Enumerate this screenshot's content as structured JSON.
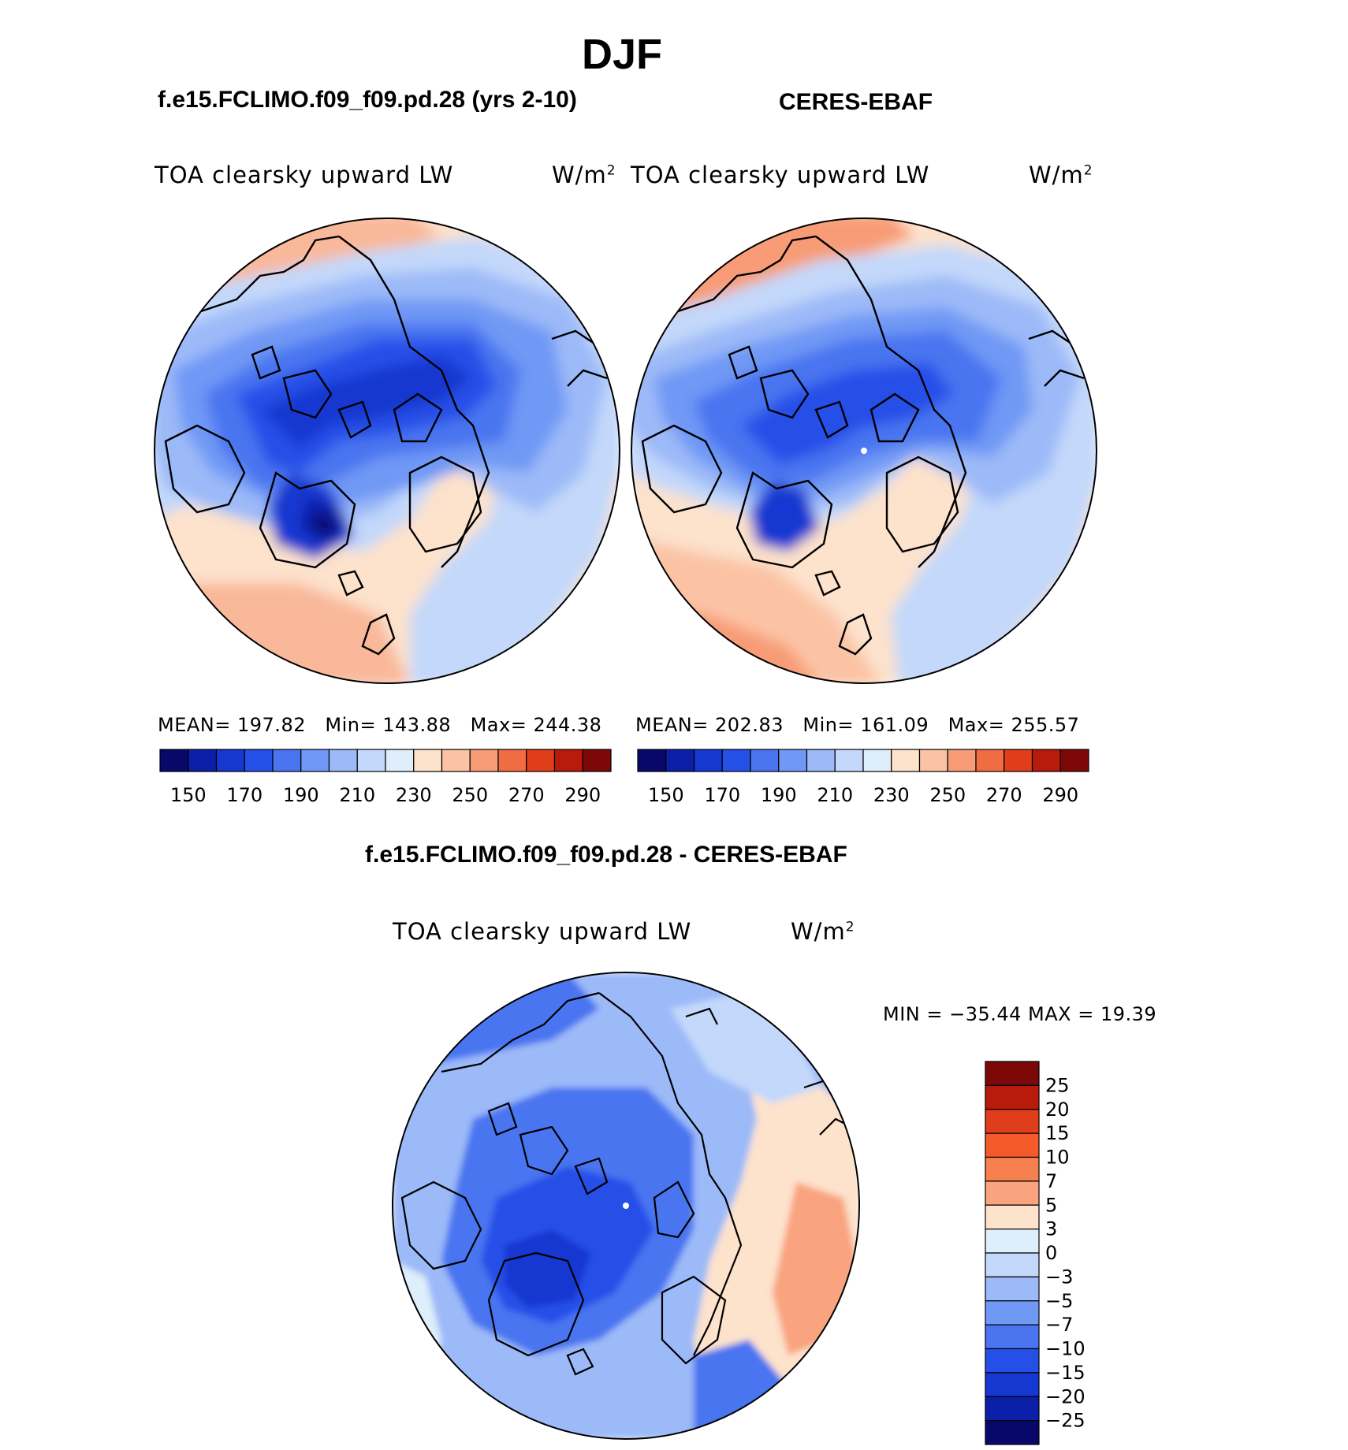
{
  "main_title": "DJF",
  "panels": {
    "model": {
      "title": "f.e15.FCLIMO.f09_f09.pd.28 (yrs 2-10)",
      "variable": "TOA clearsky upward LW",
      "units_base": "W/m",
      "units_exp": "2",
      "mean_label": "MEAN=",
      "mean": "197.82",
      "min_label": "Min=",
      "min": "143.88",
      "max_label": "Max=",
      "max": "244.38"
    },
    "obs": {
      "title": "CERES-EBAF",
      "variable": "TOA clearsky upward LW",
      "units_base": "W/m",
      "units_exp": "2",
      "mean_label": "MEAN=",
      "mean": "202.83",
      "min_label": "Min=",
      "min": "161.09",
      "max_label": "Max=",
      "max": "255.57"
    },
    "diff": {
      "title": "f.e15.FCLIMO.f09_f09.pd.28 - CERES-EBAF",
      "variable": "TOA clearsky upward LW",
      "units_base": "W/m",
      "units_exp": "2",
      "minmax_text": "MIN = −35.44 MAX =   19.39"
    }
  },
  "chart_data": [
    {
      "type": "heatmap",
      "projection": "north-polar-stereographic",
      "title": "f.e15.FCLIMO.f09_f09.pd.28 (yrs 2-10)",
      "variable": "TOA clearsky upward LW",
      "units": "W/m2",
      "mean": 197.82,
      "min": 143.88,
      "max": 244.38,
      "colorbar": {
        "orientation": "horizontal",
        "levels": [
          150,
          160,
          170,
          180,
          190,
          200,
          210,
          220,
          230,
          240,
          250,
          260,
          270,
          280,
          290
        ],
        "tick_labels": [
          "150",
          "170",
          "190",
          "210",
          "230",
          "250",
          "270",
          "290"
        ],
        "colors": [
          "#08086b",
          "#0b1fa8",
          "#1538d0",
          "#2550e8",
          "#4a74f0",
          "#7098f5",
          "#9cbaf8",
          "#c3d8fa",
          "#dfeefb",
          "#fde2cc",
          "#fbc3a4",
          "#f79c76",
          "#f06c42",
          "#e03d1a",
          "#b81a0c",
          "#7c0808"
        ]
      }
    },
    {
      "type": "heatmap",
      "projection": "north-polar-stereographic",
      "title": "CERES-EBAF",
      "variable": "TOA clearsky upward LW",
      "units": "W/m2",
      "mean": 202.83,
      "min": 161.09,
      "max": 255.57,
      "colorbar": {
        "orientation": "horizontal",
        "levels": [
          150,
          160,
          170,
          180,
          190,
          200,
          210,
          220,
          230,
          240,
          250,
          260,
          270,
          280,
          290
        ],
        "tick_labels": [
          "150",
          "170",
          "190",
          "210",
          "230",
          "250",
          "270",
          "290"
        ],
        "colors": [
          "#08086b",
          "#0b1fa8",
          "#1538d0",
          "#2550e8",
          "#4a74f0",
          "#7098f5",
          "#9cbaf8",
          "#c3d8fa",
          "#dfeefb",
          "#fde2cc",
          "#fbc3a4",
          "#f79c76",
          "#f06c42",
          "#e03d1a",
          "#b81a0c",
          "#7c0808"
        ]
      }
    },
    {
      "type": "heatmap",
      "projection": "north-polar-stereographic",
      "title": "f.e15.FCLIMO.f09_f09.pd.28 - CERES-EBAF",
      "variable": "TOA clearsky upward LW",
      "units": "W/m2",
      "min": -35.44,
      "max": 19.39,
      "colorbar": {
        "orientation": "vertical",
        "tick_labels": [
          "25",
          "20",
          "15",
          "10",
          "7",
          "5",
          "3",
          "0",
          "−3",
          "−5",
          "−7",
          "−10",
          "−15",
          "−20",
          "−25"
        ],
        "colors": [
          "#7c0808",
          "#b81a0c",
          "#e03d1a",
          "#f55a2a",
          "#f7804f",
          "#f9a37f",
          "#fde2cc",
          "#dfeefb",
          "#c3d8fa",
          "#9cbaf8",
          "#7098f5",
          "#4a74f0",
          "#2550e8",
          "#1538d0",
          "#0b1fa8",
          "#08086b"
        ]
      }
    }
  ]
}
